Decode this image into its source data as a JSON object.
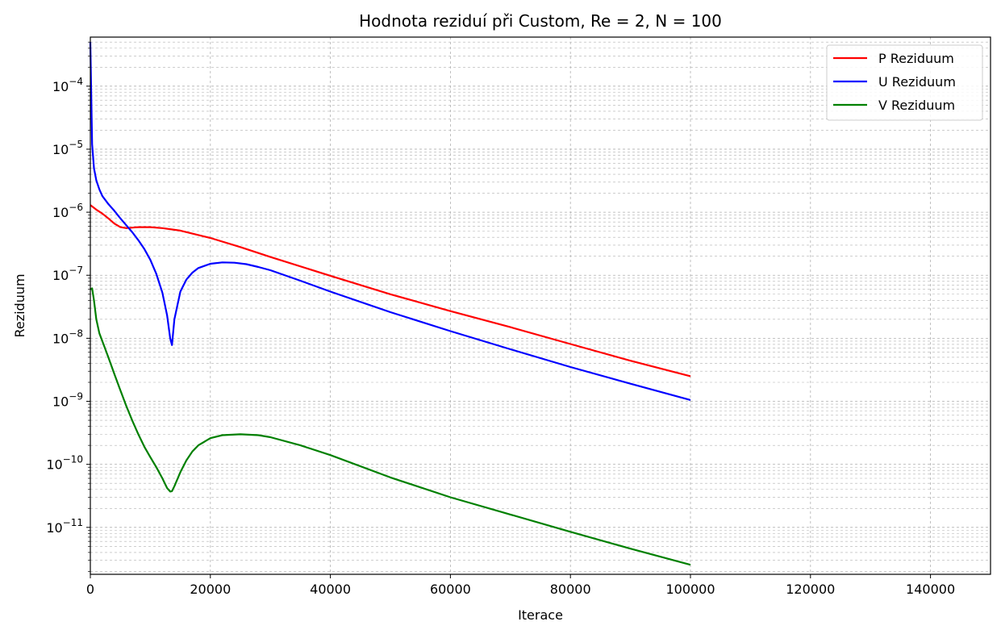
{
  "chart_data": {
    "type": "line",
    "title": "Hodnota reziduí při Custom, Re = 2, N = 100",
    "xlabel": "Iterace",
    "ylabel": "Reziduum",
    "xlim": [
      0,
      150000
    ],
    "ylim": [
      1.8e-12,
      0.0006
    ],
    "yscale": "log",
    "grid": "both",
    "legend_position": "top-right",
    "x_ticks": [
      {
        "value": 0,
        "label": "0"
      },
      {
        "value": 20000,
        "label": "20000"
      },
      {
        "value": 40000,
        "label": "40000"
      },
      {
        "value": 60000,
        "label": "60000"
      },
      {
        "value": 80000,
        "label": "80000"
      },
      {
        "value": 100000,
        "label": "100000"
      },
      {
        "value": 120000,
        "label": "120000"
      },
      {
        "value": 140000,
        "label": "140000"
      }
    ],
    "y_ticks": [
      {
        "exp": -11,
        "base": "10",
        "sup": "−11"
      },
      {
        "exp": -10,
        "base": "10",
        "sup": "−10"
      },
      {
        "exp": -9,
        "base": "10",
        "sup": "−9"
      },
      {
        "exp": -8,
        "base": "10",
        "sup": "−8"
      },
      {
        "exp": -7,
        "base": "10",
        "sup": "−7"
      },
      {
        "exp": -6,
        "base": "10",
        "sup": "−6"
      },
      {
        "exp": -5,
        "base": "10",
        "sup": "−5"
      },
      {
        "exp": -4,
        "base": "10",
        "sup": "−4"
      }
    ],
    "series": [
      {
        "name": "P Reziduum",
        "color": "#ff0000",
        "x": [
          0,
          1000,
          2000,
          3000,
          4000,
          5000,
          6000,
          7000,
          8000,
          10000,
          12000,
          15000,
          20000,
          25000,
          30000,
          40000,
          50000,
          60000,
          70000,
          80000,
          90000,
          100000
        ],
        "y": [
          1.3e-06,
          1.1e-06,
          9.5e-07,
          8e-07,
          6.6e-07,
          5.8e-07,
          5.6e-07,
          5.7e-07,
          5.8e-07,
          5.8e-07,
          5.6e-07,
          5.1e-07,
          3.9e-07,
          2.8e-07,
          1.95e-07,
          9.8e-08,
          5e-08,
          2.7e-08,
          1.5e-08,
          8.1e-09,
          4.4e-09,
          2.5e-09
        ]
      },
      {
        "name": "U Reziduum",
        "color": "#0000ff",
        "x": [
          0,
          300,
          600,
          1000,
          1500,
          2000,
          3000,
          4000,
          5000,
          6000,
          7000,
          8000,
          9000,
          10000,
          11000,
          12000,
          12800,
          13300,
          13600,
          14000,
          15000,
          16000,
          17000,
          18000,
          20000,
          22000,
          24000,
          26000,
          28000,
          30000,
          35000,
          40000,
          50000,
          60000,
          70000,
          80000,
          90000,
          100000
        ],
        "y": [
          0.0005,
          1.2e-05,
          5e-06,
          3.2e-06,
          2.3e-06,
          1.8e-06,
          1.35e-06,
          1.05e-06,
          8e-07,
          6.2e-07,
          4.8e-07,
          3.6e-07,
          2.6e-07,
          1.75e-07,
          1.05e-07,
          5.3e-08,
          2.3e-08,
          1e-08,
          7.8e-09,
          2e-08,
          5.5e-08,
          8.5e-08,
          1.1e-07,
          1.3e-07,
          1.52e-07,
          1.6e-07,
          1.58e-07,
          1.5e-07,
          1.35e-07,
          1.2e-07,
          8.2e-08,
          5.5e-08,
          2.6e-08,
          1.3e-08,
          6.7e-09,
          3.5e-09,
          1.9e-09,
          1.05e-09
        ]
      },
      {
        "name": "V Reziduum",
        "color": "#008000",
        "x": [
          0,
          300,
          600,
          1000,
          1500,
          2000,
          3000,
          4000,
          5000,
          6000,
          7000,
          8000,
          9000,
          10000,
          11000,
          12000,
          12800,
          13300,
          13600,
          14000,
          15000,
          16000,
          17000,
          18000,
          20000,
          22000,
          25000,
          28000,
          30000,
          35000,
          40000,
          50000,
          60000,
          70000,
          80000,
          90000,
          100000
        ],
        "y": [
          6e-08,
          6.2e-08,
          4e-08,
          2e-08,
          1.2e-08,
          9e-09,
          5e-09,
          2.7e-09,
          1.5e-09,
          8.4e-10,
          4.9e-10,
          3e-10,
          1.9e-10,
          1.3e-10,
          9e-11,
          6e-11,
          4.2e-11,
          3.7e-11,
          3.75e-11,
          4.5e-11,
          7.5e-11,
          1.15e-10,
          1.6e-10,
          2e-10,
          2.6e-10,
          2.9e-10,
          3e-10,
          2.9e-10,
          2.7e-10,
          2e-10,
          1.4e-10,
          6.2e-11,
          3e-11,
          1.6e-11,
          8.5e-12,
          4.6e-12,
          2.55e-12
        ]
      }
    ]
  }
}
